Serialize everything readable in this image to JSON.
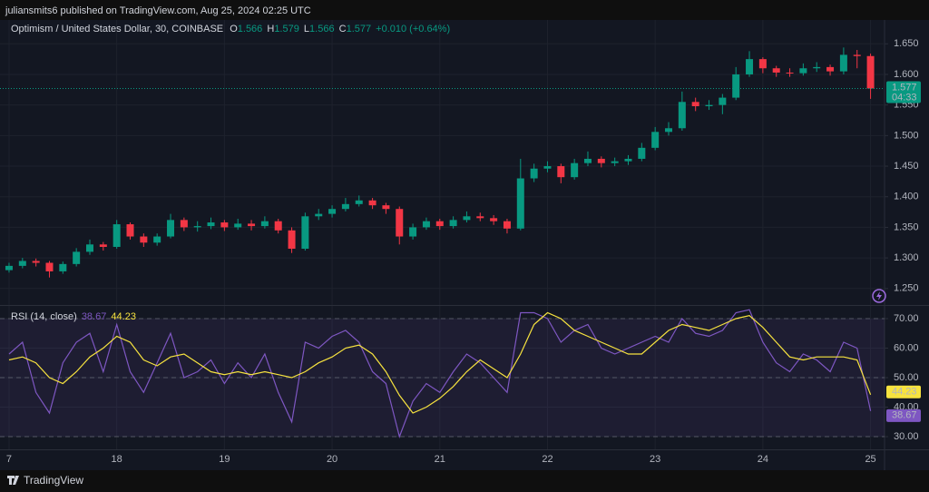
{
  "header": {
    "published": "juliansmits6 published on TradingView.com, Aug 25, 2024 02:25 UTC"
  },
  "legend": {
    "symbol": "Optimism / United States Dollar, 30, COINBASE",
    "ohlc": [
      {
        "label": "O",
        "value": 1.566
      },
      {
        "label": "H",
        "value": 1.579
      },
      {
        "label": "L",
        "value": 1.566
      },
      {
        "label": "C",
        "value": 1.577
      }
    ],
    "change": "+0.010 (+0.64%)",
    "countdown": "04:33"
  },
  "footer": {
    "brand": "TradingView"
  },
  "chart_data": [
    {
      "type": "candlestick",
      "up_color": "#089981",
      "down_color": "#f23645",
      "x": [
        17,
        17.125,
        17.25,
        17.375,
        17.5,
        17.625,
        17.75,
        17.875,
        18,
        18.125,
        18.25,
        18.375,
        18.5,
        18.625,
        18.75,
        18.875,
        19,
        19.125,
        19.25,
        19.375,
        19.5,
        19.625,
        19.75,
        19.875,
        20,
        20.125,
        20.25,
        20.375,
        20.5,
        20.625,
        20.75,
        20.875,
        21,
        21.125,
        21.25,
        21.375,
        21.5,
        21.625,
        21.75,
        21.875,
        22,
        22.125,
        22.25,
        22.375,
        22.5,
        22.625,
        22.75,
        22.875,
        23,
        23.125,
        23.25,
        23.375,
        23.5,
        23.625,
        23.75,
        23.875,
        24,
        24.125,
        24.25,
        24.375,
        24.5,
        24.625,
        24.75,
        24.875,
        25
      ],
      "open": [
        1.28,
        1.287,
        1.295,
        1.292,
        1.278,
        1.29,
        1.31,
        1.322,
        1.318,
        1.355,
        1.335,
        1.325,
        1.335,
        1.362,
        1.35,
        1.352,
        1.358,
        1.35,
        1.356,
        1.352,
        1.36,
        1.345,
        1.315,
        1.368,
        1.372,
        1.38,
        1.388,
        1.394,
        1.386,
        1.38,
        1.335,
        1.35,
        1.36,
        1.352,
        1.362,
        1.368,
        1.365,
        1.36,
        1.348,
        1.43,
        1.446,
        1.45,
        1.432,
        1.455,
        1.462,
        1.455,
        1.458,
        1.462,
        1.48,
        1.506,
        1.512,
        1.555,
        1.548,
        1.55,
        1.562,
        1.6,
        1.625,
        1.61,
        1.603,
        1.602,
        1.61,
        1.612,
        1.605,
        1.632,
        1.63
      ],
      "high": [
        1.292,
        1.3,
        1.299,
        1.295,
        1.294,
        1.316,
        1.33,
        1.326,
        1.362,
        1.358,
        1.34,
        1.34,
        1.372,
        1.366,
        1.36,
        1.366,
        1.362,
        1.364,
        1.362,
        1.368,
        1.364,
        1.35,
        1.374,
        1.38,
        1.386,
        1.398,
        1.402,
        1.398,
        1.39,
        1.384,
        1.356,
        1.366,
        1.364,
        1.368,
        1.376,
        1.374,
        1.37,
        1.364,
        1.462,
        1.454,
        1.458,
        1.454,
        1.462,
        1.474,
        1.466,
        1.464,
        1.468,
        1.488,
        1.514,
        1.522,
        1.572,
        1.562,
        1.558,
        1.568,
        1.612,
        1.638,
        1.628,
        1.614,
        1.61,
        1.618,
        1.62,
        1.616,
        1.644,
        1.64,
        1.634
      ],
      "low": [
        1.276,
        1.283,
        1.286,
        1.268,
        1.274,
        1.286,
        1.305,
        1.312,
        1.315,
        1.33,
        1.318,
        1.32,
        1.332,
        1.344,
        1.343,
        1.347,
        1.344,
        1.346,
        1.345,
        1.348,
        1.34,
        1.308,
        1.312,
        1.362,
        1.366,
        1.376,
        1.384,
        1.38,
        1.372,
        1.322,
        1.33,
        1.346,
        1.346,
        1.348,
        1.358,
        1.36,
        1.354,
        1.34,
        1.345,
        1.424,
        1.44,
        1.422,
        1.428,
        1.45,
        1.448,
        1.45,
        1.452,
        1.458,
        1.476,
        1.5,
        1.508,
        1.54,
        1.542,
        1.535,
        1.558,
        1.596,
        1.602,
        1.596,
        1.596,
        1.598,
        1.604,
        1.598,
        1.6,
        1.61,
        1.56
      ],
      "close": [
        1.287,
        1.295,
        1.292,
        1.278,
        1.29,
        1.31,
        1.322,
        1.318,
        1.355,
        1.335,
        1.325,
        1.335,
        1.362,
        1.35,
        1.352,
        1.358,
        1.35,
        1.356,
        1.352,
        1.36,
        1.345,
        1.315,
        1.368,
        1.372,
        1.38,
        1.388,
        1.394,
        1.386,
        1.38,
        1.335,
        1.35,
        1.36,
        1.352,
        1.362,
        1.368,
        1.365,
        1.36,
        1.348,
        1.43,
        1.446,
        1.45,
        1.432,
        1.455,
        1.462,
        1.455,
        1.458,
        1.462,
        1.48,
        1.506,
        1.512,
        1.555,
        1.548,
        1.55,
        1.562,
        1.6,
        1.625,
        1.61,
        1.603,
        1.602,
        1.61,
        1.612,
        1.605,
        1.632,
        1.63,
        1.577
      ],
      "xlim": [
        16.916,
        25.13
      ],
      "xticks": [
        {
          "value": 17,
          "label": "7"
        },
        18,
        19,
        20,
        21,
        22,
        23,
        24,
        25
      ],
      "ylim": [
        1.223,
        1.689
      ],
      "yticks": [
        {
          "value": 1.25,
          "label": "1.250"
        },
        {
          "value": 1.3,
          "label": "1.300"
        },
        {
          "value": 1.35,
          "label": "1.350"
        },
        {
          "value": 1.4,
          "label": "1.400"
        },
        {
          "value": 1.45,
          "label": "1.450"
        },
        {
          "value": 1.5,
          "label": "1.500"
        },
        {
          "value": 1.55,
          "label": "1.550"
        },
        {
          "value": 1.6,
          "label": "1.600"
        },
        {
          "value": 1.65,
          "label": "1.650"
        }
      ],
      "grid": true
    },
    {
      "type": "line",
      "title": "RSI (14, close)",
      "x": [
        17,
        17.125,
        17.25,
        17.375,
        17.5,
        17.625,
        17.75,
        17.875,
        18,
        18.125,
        18.25,
        18.375,
        18.5,
        18.625,
        18.75,
        18.875,
        19,
        19.125,
        19.25,
        19.375,
        19.5,
        19.625,
        19.75,
        19.875,
        20,
        20.125,
        20.25,
        20.375,
        20.5,
        20.625,
        20.75,
        20.875,
        21,
        21.125,
        21.25,
        21.375,
        21.5,
        21.625,
        21.75,
        21.875,
        22,
        22.125,
        22.25,
        22.375,
        22.5,
        22.625,
        22.75,
        22.875,
        23,
        23.125,
        23.25,
        23.375,
        23.5,
        23.625,
        23.75,
        23.875,
        24,
        24.125,
        24.25,
        24.375,
        24.5,
        24.625,
        24.75,
        24.875,
        25
      ],
      "series": [
        {
          "color": "#7e57c2",
          "values": [
            58,
            62,
            45,
            38,
            55,
            62,
            65,
            52,
            68,
            52,
            45,
            55,
            65,
            50,
            52,
            56,
            48,
            55,
            50,
            58,
            45,
            35,
            62,
            60,
            64,
            66,
            62,
            52,
            48,
            30,
            42,
            48,
            45,
            52,
            58,
            55,
            50,
            45,
            72,
            72,
            70,
            62,
            66,
            68,
            60,
            58,
            60,
            62,
            64,
            62,
            70,
            65,
            64,
            66,
            72,
            73,
            62,
            55,
            52,
            58,
            56,
            52,
            62,
            60,
            38.67
          ]
        },
        {
          "color": "#f7e33f",
          "values": [
            56,
            57,
            55,
            50,
            48,
            52,
            57,
            60,
            64,
            62,
            56,
            54,
            57,
            58,
            55,
            52,
            51,
            52,
            51,
            52,
            51,
            50,
            52,
            55,
            57,
            60,
            61,
            58,
            52,
            44,
            38,
            40,
            43,
            47,
            52,
            56,
            53,
            50,
            58,
            68,
            72,
            70,
            66,
            64,
            62,
            60,
            58,
            58,
            62,
            66,
            68,
            67,
            66,
            68,
            70,
            71,
            67,
            62,
            57,
            56,
            57,
            57,
            57,
            56,
            44.23
          ]
        }
      ],
      "bands": [
        70,
        50,
        30
      ],
      "xlim": [
        16.916,
        25.13
      ],
      "ylim": [
        25.7,
        74.3
      ],
      "yticks": [
        {
          "value": 30,
          "label": "30.00"
        },
        {
          "value": 40,
          "label": "40.00"
        },
        {
          "value": 50,
          "label": "50.00"
        },
        {
          "value": 60,
          "label": "60.00"
        },
        {
          "value": 70,
          "label": "70.00"
        }
      ],
      "grid": true
    }
  ]
}
